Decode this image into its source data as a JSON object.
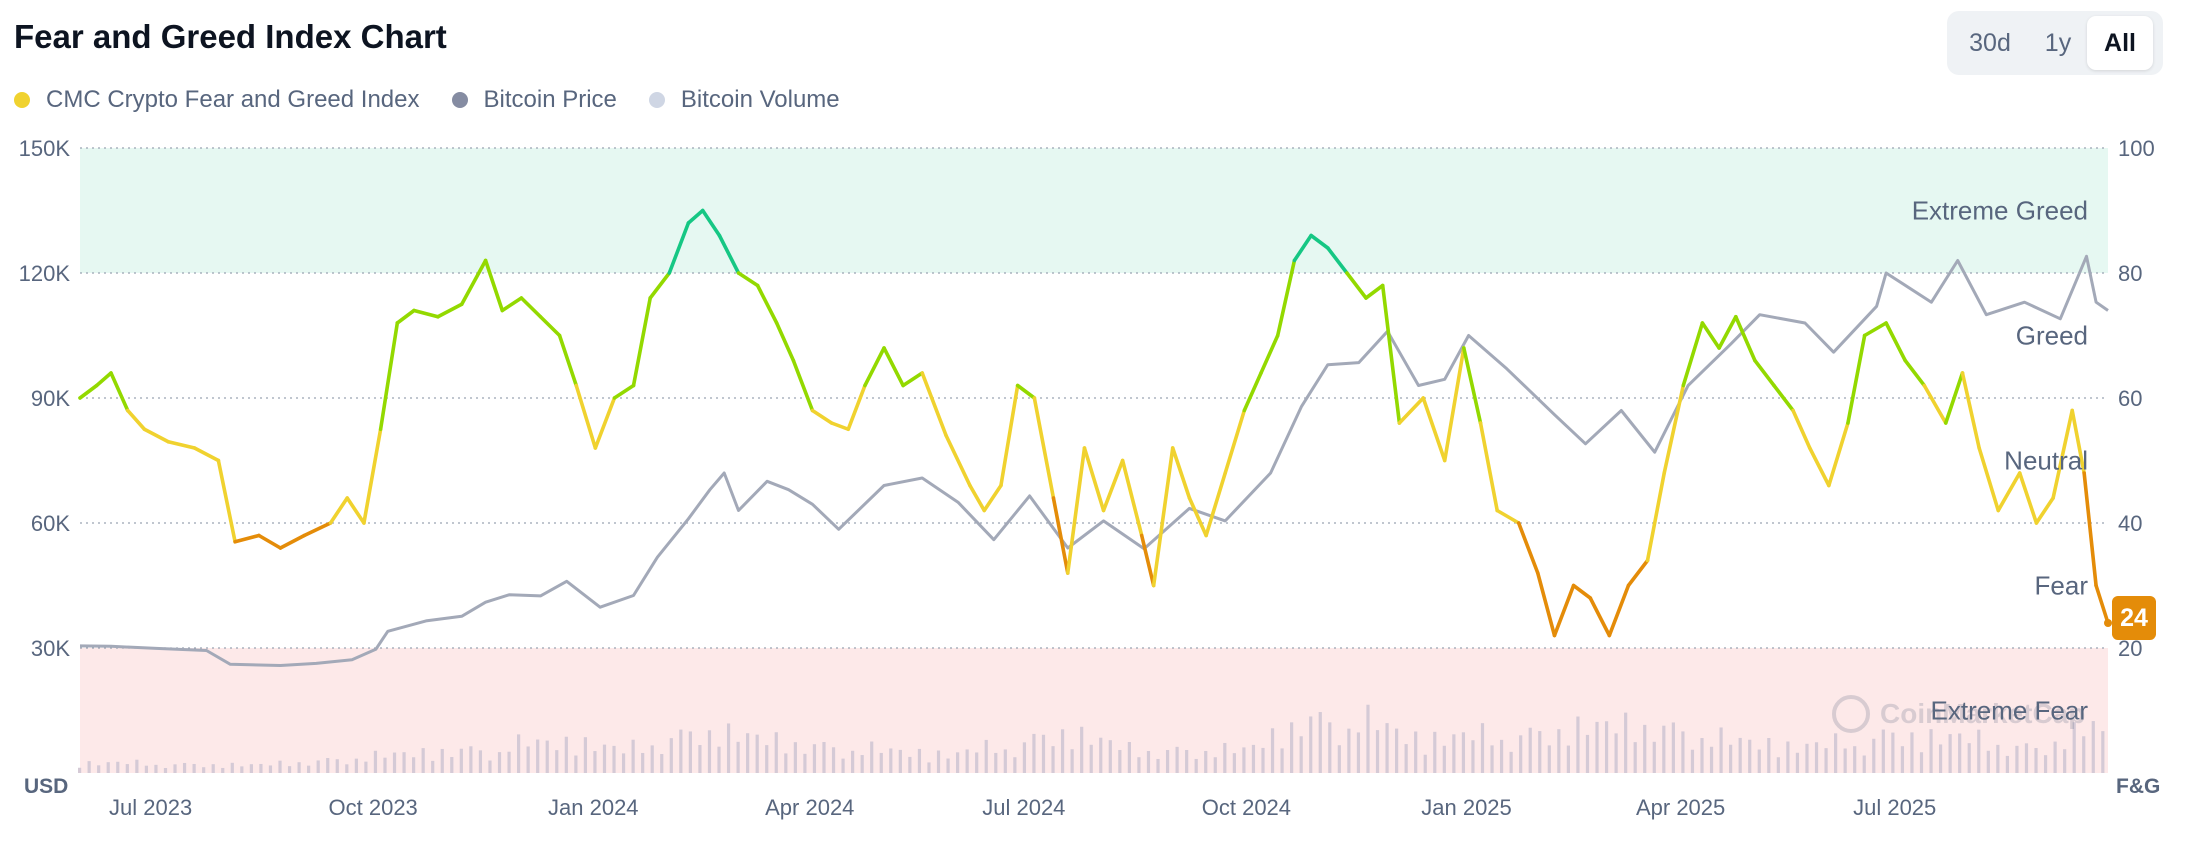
{
  "header": {
    "title": "Fear and Greed Index Chart"
  },
  "range_buttons": {
    "d30": "30d",
    "y1": "1y",
    "all": "All",
    "selected": "All"
  },
  "legend": [
    {
      "label": "CMC Crypto Fear and Greed Index",
      "color": "#f0d22f"
    },
    {
      "label": "Bitcoin Price",
      "color": "#858ca2"
    },
    {
      "label": "Bitcoin Volume",
      "color": "#cfd6e4"
    }
  ],
  "current": {
    "value": "24",
    "color": "#e48c09"
  },
  "watermark": "CoinMarketCap",
  "chart_data": {
    "type": "line",
    "x_range": [
      "2023-06-18",
      "2025-10-15"
    ],
    "x_ticks": [
      {
        "label": "Jul 2023",
        "date": "2023-07-01"
      },
      {
        "label": "Oct 2023",
        "date": "2023-10-01"
      },
      {
        "label": "Jan 2024",
        "date": "2024-01-01"
      },
      {
        "label": "Apr 2024",
        "date": "2024-04-01"
      },
      {
        "label": "Jul 2024",
        "date": "2024-07-01"
      },
      {
        "label": "Oct 2024",
        "date": "2024-10-01"
      },
      {
        "label": "Jan 2025",
        "date": "2025-01-01"
      },
      {
        "label": "Apr 2025",
        "date": "2025-04-01"
      },
      {
        "label": "Jul 2025",
        "date": "2025-07-01"
      }
    ],
    "y_left": {
      "unit": "USD",
      "ylim": [
        0,
        150000
      ],
      "ticks": [
        {
          "label": "150K",
          "value": 150000
        },
        {
          "label": "120K",
          "value": 120000
        },
        {
          "label": "90K",
          "value": 90000
        },
        {
          "label": "60K",
          "value": 60000
        },
        {
          "label": "30K",
          "value": 30000
        }
      ]
    },
    "y_right": {
      "unit": "F&G",
      "ylim": [
        0,
        100
      ],
      "ticks": [
        {
          "label": "100",
          "value": 100
        },
        {
          "label": "80",
          "value": 80
        },
        {
          "label": "60",
          "value": 60
        },
        {
          "label": "40",
          "value": 40
        },
        {
          "label": "20",
          "value": 20
        }
      ]
    },
    "zones": [
      {
        "name": "Extreme Greed",
        "from": 80,
        "to": 100,
        "color": "#e6f8f2"
      },
      {
        "name": "Greed",
        "from": 60,
        "to": 80
      },
      {
        "name": "Neutral",
        "from": 40,
        "to": 60
      },
      {
        "name": "Fear",
        "from": 20,
        "to": 40
      },
      {
        "name": "Extreme Fear",
        "from": 0,
        "to": 20,
        "color": "#fde9e9"
      }
    ],
    "fg_colors": {
      "extreme_fear": "#ea3943",
      "fear": "#e48c09",
      "neutral": "#f0d22f",
      "greed": "#93d900",
      "extreme_greed": "#16c784"
    },
    "grid": true,
    "series": [
      {
        "name": "CMC Crypto Fear and Greed Index",
        "points": [
          [
            "2023-06-18",
            60
          ],
          [
            "2023-06-25",
            62
          ],
          [
            "2023-07-01",
            64
          ],
          [
            "2023-07-08",
            58
          ],
          [
            "2023-07-15",
            55
          ],
          [
            "2023-07-25",
            53
          ],
          [
            "2023-08-05",
            52
          ],
          [
            "2023-08-15",
            50
          ],
          [
            "2023-08-22",
            37
          ],
          [
            "2023-09-01",
            38
          ],
          [
            "2023-09-10",
            36
          ],
          [
            "2023-09-20",
            38
          ],
          [
            "2023-10-01",
            40
          ],
          [
            "2023-10-08",
            44
          ],
          [
            "2023-10-15",
            40
          ],
          [
            "2023-10-22",
            55
          ],
          [
            "2023-10-29",
            72
          ],
          [
            "2023-11-05",
            74
          ],
          [
            "2023-11-15",
            73
          ],
          [
            "2023-11-25",
            75
          ],
          [
            "2023-12-05",
            82
          ],
          [
            "2023-12-12",
            74
          ],
          [
            "2023-12-20",
            76
          ],
          [
            "2023-12-28",
            73
          ],
          [
            "2024-01-05",
            70
          ],
          [
            "2024-01-12",
            62
          ],
          [
            "2024-01-20",
            52
          ],
          [
            "2024-01-28",
            60
          ],
          [
            "2024-02-05",
            62
          ],
          [
            "2024-02-12",
            76
          ],
          [
            "2024-02-20",
            80
          ],
          [
            "2024-02-28",
            88
          ],
          [
            "2024-03-05",
            90
          ],
          [
            "2024-03-12",
            86
          ],
          [
            "2024-03-20",
            80
          ],
          [
            "2024-03-28",
            78
          ],
          [
            "2024-04-05",
            72
          ],
          [
            "2024-04-12",
            66
          ],
          [
            "2024-04-20",
            58
          ],
          [
            "2024-04-28",
            56
          ],
          [
            "2024-05-05",
            55
          ],
          [
            "2024-05-12",
            62
          ],
          [
            "2024-05-20",
            68
          ],
          [
            "2024-05-28",
            62
          ],
          [
            "2024-06-05",
            64
          ],
          [
            "2024-06-15",
            54
          ],
          [
            "2024-06-25",
            46
          ],
          [
            "2024-07-01",
            42
          ],
          [
            "2024-07-08",
            46
          ],
          [
            "2024-07-15",
            62
          ],
          [
            "2024-07-22",
            60
          ],
          [
            "2024-07-30",
            44
          ],
          [
            "2024-08-05",
            32
          ],
          [
            "2024-08-12",
            52
          ],
          [
            "2024-08-20",
            42
          ],
          [
            "2024-08-28",
            50
          ],
          [
            "2024-09-05",
            38
          ],
          [
            "2024-09-10",
            30
          ],
          [
            "2024-09-18",
            52
          ],
          [
            "2024-09-25",
            44
          ],
          [
            "2024-10-02",
            38
          ],
          [
            "2024-10-10",
            48
          ],
          [
            "2024-10-18",
            58
          ],
          [
            "2024-10-25",
            64
          ],
          [
            "2024-11-01",
            70
          ],
          [
            "2024-11-08",
            82
          ],
          [
            "2024-11-15",
            86
          ],
          [
            "2024-11-22",
            84
          ],
          [
            "2024-11-30",
            80
          ],
          [
            "2024-12-08",
            76
          ],
          [
            "2024-12-15",
            78
          ],
          [
            "2024-12-22",
            56
          ],
          [
            "2025-01-01",
            60
          ],
          [
            "2025-01-10",
            50
          ],
          [
            "2025-01-18",
            68
          ],
          [
            "2025-01-25",
            56
          ],
          [
            "2025-02-01",
            42
          ],
          [
            "2025-02-10",
            40
          ],
          [
            "2025-02-18",
            32
          ],
          [
            "2025-02-25",
            22
          ],
          [
            "2025-03-05",
            30
          ],
          [
            "2025-03-12",
            28
          ],
          [
            "2025-03-20",
            22
          ],
          [
            "2025-03-28",
            30
          ],
          [
            "2025-04-05",
            34
          ],
          [
            "2025-04-12",
            48
          ],
          [
            "2025-04-20",
            62
          ],
          [
            "2025-04-28",
            72
          ],
          [
            "2025-05-05",
            68
          ],
          [
            "2025-05-12",
            73
          ],
          [
            "2025-05-20",
            66
          ],
          [
            "2025-05-28",
            62
          ],
          [
            "2025-06-05",
            58
          ],
          [
            "2025-06-12",
            52
          ],
          [
            "2025-06-20",
            46
          ],
          [
            "2025-06-28",
            56
          ],
          [
            "2025-07-05",
            70
          ],
          [
            "2025-07-14",
            72
          ],
          [
            "2025-07-22",
            66
          ],
          [
            "2025-07-30",
            62
          ],
          [
            "2025-08-08",
            56
          ],
          [
            "2025-08-15",
            64
          ],
          [
            "2025-08-22",
            52
          ],
          [
            "2025-08-30",
            42
          ],
          [
            "2025-09-08",
            48
          ],
          [
            "2025-09-15",
            40
          ],
          [
            "2025-09-22",
            44
          ],
          [
            "2025-09-30",
            58
          ],
          [
            "2025-10-05",
            48
          ],
          [
            "2025-10-10",
            30
          ],
          [
            "2025-10-15",
            24
          ]
        ]
      },
      {
        "name": "Bitcoin Price",
        "points": [
          [
            "2023-06-18",
            30500
          ],
          [
            "2023-07-01",
            30400
          ],
          [
            "2023-07-20",
            29900
          ],
          [
            "2023-08-10",
            29400
          ],
          [
            "2023-08-20",
            26100
          ],
          [
            "2023-09-10",
            25800
          ],
          [
            "2023-09-25",
            26300
          ],
          [
            "2023-10-10",
            27200
          ],
          [
            "2023-10-20",
            29700
          ],
          [
            "2023-10-25",
            34000
          ],
          [
            "2023-11-10",
            36500
          ],
          [
            "2023-11-25",
            37600
          ],
          [
            "2023-12-05",
            41000
          ],
          [
            "2023-12-15",
            42800
          ],
          [
            "2023-12-28",
            42500
          ],
          [
            "2024-01-08",
            46000
          ],
          [
            "2024-01-22",
            39800
          ],
          [
            "2024-02-05",
            42600
          ],
          [
            "2024-02-15",
            51800
          ],
          [
            "2024-02-28",
            61000
          ],
          [
            "2024-03-08",
            68000
          ],
          [
            "2024-03-14",
            72000
          ],
          [
            "2024-03-20",
            63000
          ],
          [
            "2024-04-01",
            70000
          ],
          [
            "2024-04-10",
            68000
          ],
          [
            "2024-04-20",
            64500
          ],
          [
            "2024-05-01",
            58500
          ],
          [
            "2024-05-20",
            69000
          ],
          [
            "2024-06-05",
            70800
          ],
          [
            "2024-06-20",
            65000
          ],
          [
            "2024-07-05",
            56000
          ],
          [
            "2024-07-20",
            66500
          ],
          [
            "2024-08-05",
            54000
          ],
          [
            "2024-08-20",
            60500
          ],
          [
            "2024-09-06",
            53800
          ],
          [
            "2024-09-25",
            63500
          ],
          [
            "2024-10-10",
            60500
          ],
          [
            "2024-10-29",
            72000
          ],
          [
            "2024-11-11",
            88000
          ],
          [
            "2024-11-22",
            98000
          ],
          [
            "2024-12-05",
            98500
          ],
          [
            "2024-12-17",
            106000
          ],
          [
            "2024-12-30",
            93000
          ],
          [
            "2025-01-10",
            94500
          ],
          [
            "2025-01-20",
            105000
          ],
          [
            "2025-02-05",
            97000
          ],
          [
            "2025-02-25",
            86000
          ],
          [
            "2025-03-10",
            79000
          ],
          [
            "2025-03-25",
            87000
          ],
          [
            "2025-04-08",
            77000
          ],
          [
            "2025-04-22",
            93000
          ],
          [
            "2025-05-10",
            103000
          ],
          [
            "2025-05-22",
            110000
          ],
          [
            "2025-06-10",
            108000
          ],
          [
            "2025-06-22",
            101000
          ],
          [
            "2025-07-10",
            112000
          ],
          [
            "2025-07-14",
            120000
          ],
          [
            "2025-08-02",
            113000
          ],
          [
            "2025-08-13",
            123000
          ],
          [
            "2025-08-25",
            110000
          ],
          [
            "2025-09-10",
            113000
          ],
          [
            "2025-09-25",
            109000
          ],
          [
            "2025-10-06",
            124000
          ],
          [
            "2025-10-10",
            113000
          ],
          [
            "2025-10-15",
            111000
          ]
        ]
      },
      {
        "name": "Bitcoin Volume",
        "points": [
          [
            "2023-06-18",
            12
          ],
          [
            "2023-08-01",
            10
          ],
          [
            "2023-09-01",
            9
          ],
          [
            "2023-10-25",
            20
          ],
          [
            "2023-11-15",
            25
          ],
          [
            "2023-12-10",
            28
          ],
          [
            "2024-01-10",
            38
          ],
          [
            "2024-02-01",
            25
          ],
          [
            "2024-03-05",
            50
          ],
          [
            "2024-03-20",
            42
          ],
          [
            "2024-04-20",
            32
          ],
          [
            "2024-05-20",
            25
          ],
          [
            "2024-06-20",
            22
          ],
          [
            "2024-07-05",
            28
          ],
          [
            "2024-08-05",
            48
          ],
          [
            "2024-09-01",
            26
          ],
          [
            "2024-10-20",
            26
          ],
          [
            "2024-11-12",
            62
          ],
          [
            "2024-12-05",
            58
          ],
          [
            "2025-01-01",
            40
          ],
          [
            "2025-02-05",
            42
          ],
          [
            "2025-03-10",
            52
          ],
          [
            "2025-04-08",
            55
          ],
          [
            "2025-05-10",
            36
          ],
          [
            "2025-06-20",
            30
          ],
          [
            "2025-07-14",
            44
          ],
          [
            "2025-08-14",
            40
          ],
          [
            "2025-09-15",
            28
          ],
          [
            "2025-10-10",
            54
          ],
          [
            "2025-10-15",
            36
          ]
        ]
      }
    ]
  }
}
